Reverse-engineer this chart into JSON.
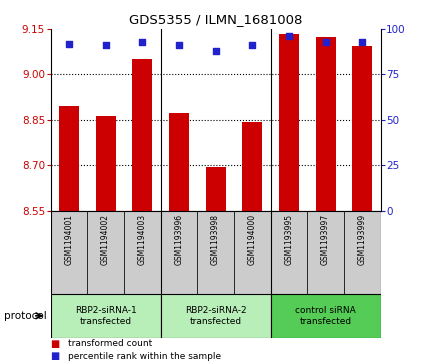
{
  "title": "GDS5355 / ILMN_1681008",
  "samples": [
    "GSM1194001",
    "GSM1194002",
    "GSM1194003",
    "GSM1193996",
    "GSM1193998",
    "GSM1194000",
    "GSM1193995",
    "GSM1193997",
    "GSM1193999"
  ],
  "red_values": [
    8.895,
    8.862,
    9.052,
    8.872,
    8.695,
    8.843,
    9.135,
    9.125,
    9.095
  ],
  "blue_values": [
    92,
    91,
    93,
    91,
    88,
    91,
    96,
    93,
    93
  ],
  "ylim_left": [
    8.55,
    9.15
  ],
  "ylim_right": [
    0,
    100
  ],
  "yticks_left": [
    8.55,
    8.7,
    8.85,
    9.0,
    9.15
  ],
  "yticks_right": [
    0,
    25,
    50,
    75,
    100
  ],
  "groups": [
    {
      "label": "RBP2-siRNA-1\ntransfected",
      "start": 0,
      "end": 3,
      "color": "#b8eeb8"
    },
    {
      "label": "RBP2-siRNA-2\ntransfected",
      "start": 3,
      "end": 6,
      "color": "#b8eeb8"
    },
    {
      "label": "control siRNA\ntransfected",
      "start": 6,
      "end": 9,
      "color": "#55cc55"
    }
  ],
  "bar_color": "#cc0000",
  "dot_color": "#2222cc",
  "label_box_color": "#cccccc",
  "legend_red": "transformed count",
  "legend_blue": "percentile rank within the sample",
  "protocol_label": "protocol",
  "gridlines": [
    9.0,
    8.85,
    8.7
  ],
  "bar_width": 0.55
}
